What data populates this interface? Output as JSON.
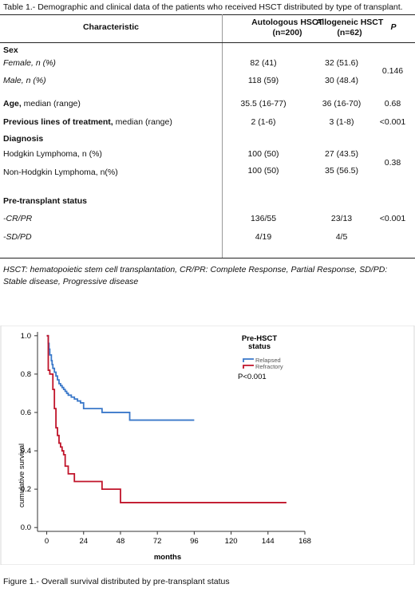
{
  "table_caption": "Table 1.- Demographic and clinical data of the patients who received HSCT distributed by type of transplant.",
  "table": {
    "headers": {
      "characteristic": "Characteristic",
      "auto_line1": "Autologous HSCT",
      "auto_line2": "(n=200)",
      "allo_line1": "Allogeneic HSCT",
      "allo_line2": "(n=62)",
      "p": "P"
    },
    "sex": {
      "label": "Sex",
      "female": "Female, n (%)",
      "male": "Male, n (%)",
      "female_auto": "82 (41)",
      "female_allo": "32 (51.6)",
      "male_auto": "118 (59)",
      "male_allo": "30 (48.4)",
      "p": "0.146"
    },
    "age": {
      "label_bold": "Age,",
      "label_rest": " median (range)",
      "auto": "35.5 (16-77)",
      "allo": "36 (16-70)",
      "p": "0.68"
    },
    "prev": {
      "label_bold": "Previous lines of treatment,",
      "label_rest": " median (range)",
      "auto": "2 (1-6)",
      "allo": "3 (1-8)",
      "p": "<0.001"
    },
    "diagnosis": {
      "label": "Diagnosis",
      "hl": "Hodgkin Lymphoma, n (%)",
      "hl_auto": "100 (50)",
      "hl_allo": "27 (43.5)",
      "nhl": "Non-Hodgkin Lymphoma, n(%)",
      "nhl_auto": "100 (50)",
      "nhl_allo": "35 (56.5)",
      "p": "0.38"
    },
    "pre": {
      "label": "Pre-transplant status",
      "crpr": "-CR/PR",
      "crpr_auto": "136/55",
      "crpr_allo": "23/13",
      "sdpd": "-SD/PD",
      "sdpd_auto": "4/19",
      "sdpd_allo": "4/5",
      "p": "<0.001"
    }
  },
  "table_note": "HSCT: hematopoietic stem cell transplantation, CR/PR: Complete Response, Partial Response, SD/PD: Stable disease, Progressive disease",
  "figure_caption": "Figure 1.- Overall survival distributed by pre-transplant status",
  "chart_data": {
    "type": "line",
    "xlabel": "months",
    "ylabel": "cumulative survival",
    "xlim": [
      -6,
      168
    ],
    "ylim": [
      -0.02,
      1.02
    ],
    "x_ticks": [
      "0",
      "24",
      "48",
      "72",
      "96",
      "120",
      "144",
      "168"
    ],
    "y_ticks": [
      "0.0",
      "0.2",
      "0.4",
      "0.6",
      "0.8",
      "1.0"
    ],
    "legend_title": "Pre-HSCT status",
    "legend_position": "top-right",
    "annotation": "P<0.001",
    "series": [
      {
        "name": "Relapsed",
        "color": "#3a78c9",
        "x": [
          0,
          1,
          1.5,
          2,
          3,
          3.5,
          4,
          5,
          6,
          7,
          8,
          9,
          10,
          11,
          12,
          13,
          14,
          16,
          18,
          20,
          22,
          24,
          30,
          36,
          42,
          48,
          54,
          60,
          72,
          84,
          96
        ],
        "y": [
          1.0,
          0.96,
          0.93,
          0.9,
          0.87,
          0.85,
          0.83,
          0.81,
          0.79,
          0.77,
          0.75,
          0.74,
          0.73,
          0.72,
          0.71,
          0.7,
          0.69,
          0.68,
          0.67,
          0.66,
          0.65,
          0.62,
          0.62,
          0.6,
          0.6,
          0.6,
          0.56,
          0.56,
          0.56,
          0.56,
          0.56
        ]
      },
      {
        "name": "Refractory",
        "color": "#c0142a",
        "x": [
          0,
          1,
          2,
          4,
          5,
          6,
          7,
          8,
          9,
          10,
          11,
          12,
          14,
          18,
          24,
          36,
          42,
          48,
          72,
          96,
          120,
          156
        ],
        "y": [
          1.0,
          0.82,
          0.8,
          0.72,
          0.62,
          0.52,
          0.48,
          0.44,
          0.42,
          0.4,
          0.38,
          0.32,
          0.28,
          0.24,
          0.24,
          0.2,
          0.2,
          0.13,
          0.13,
          0.13,
          0.13,
          0.13
        ]
      }
    ]
  }
}
